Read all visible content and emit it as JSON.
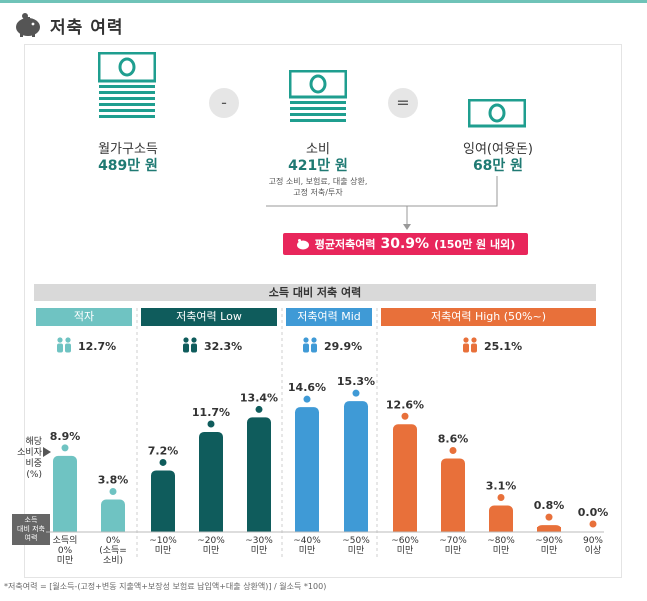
{
  "header": {
    "title": "저축 여력",
    "icon": "piggy-bank-icon"
  },
  "equation": {
    "income": {
      "label": "월가구소득",
      "value": "489만 원"
    },
    "minus": "-",
    "spend": {
      "label": "소비",
      "value": "421만 원",
      "note1": "고정 소비, 보험료, 대출 상환,",
      "note2": "고정 저축/투자"
    },
    "equals": "=",
    "surplus": {
      "label": "잉여(여윳돈)",
      "value": "68만 원"
    }
  },
  "average": {
    "prefix": "평균저축여력",
    "pct": "30.9%",
    "suffix": "(150만 원 내외)"
  },
  "section_title": "소득 대비 저축 여력",
  "categories": [
    {
      "label": "적자",
      "color": "#6fc3c2",
      "share": "12.7%"
    },
    {
      "label": "저축여력 Low",
      "color": "#0f5c5c",
      "share": "32.3%"
    },
    {
      "label": "저축여력 Mid",
      "color": "#3f9ad6",
      "share": "29.9%"
    },
    {
      "label": "저축여력 High (50%~)",
      "color": "#e8703a",
      "share": "25.1%"
    }
  ],
  "axis_note": {
    "line1": "해당",
    "line2": "소비자",
    "line3": "비중",
    "line4": "(%)"
  },
  "axis_tag": {
    "line1": "소득",
    "line2": "대비 저축",
    "line3": "여력"
  },
  "chart_data": {
    "type": "bar",
    "ylabel": "해당 소비자 비중 (%)",
    "xlabel": "소득 대비 저축 여력",
    "categories": [
      [
        "소득의",
        "0%",
        "미만"
      ],
      [
        "0%",
        "(소득=",
        "소비)"
      ],
      [
        "~10%",
        "미만"
      ],
      [
        "~20%",
        "미만"
      ],
      [
        "~30%",
        "미만"
      ],
      [
        "~40%",
        "미만"
      ],
      [
        "~50%",
        "미만"
      ],
      [
        "~60%",
        "미만"
      ],
      [
        "~70%",
        "미만"
      ],
      [
        "~80%",
        "미만"
      ],
      [
        "~90%",
        "미만"
      ],
      [
        "90%",
        "이상"
      ]
    ],
    "values": [
      8.9,
      3.8,
      7.2,
      11.7,
      13.4,
      14.6,
      15.3,
      12.6,
      8.6,
      3.1,
      0.8,
      0.0
    ],
    "labels": [
      "8.9%",
      "3.8%",
      "7.2%",
      "11.7%",
      "13.4%",
      "14.6%",
      "15.3%",
      "12.6%",
      "8.6%",
      "3.1%",
      "0.8%",
      "0.0%"
    ],
    "groups": [
      0,
      0,
      1,
      1,
      1,
      2,
      2,
      3,
      3,
      3,
      3,
      3
    ],
    "ylim": [
      0,
      16
    ],
    "grid": false,
    "legend": "top"
  },
  "footnote": "*저축여력 = [월소득-(고정+변동 지출액+보장성 보험료 납입액+대출 상환액)] / 월소득 *100)"
}
